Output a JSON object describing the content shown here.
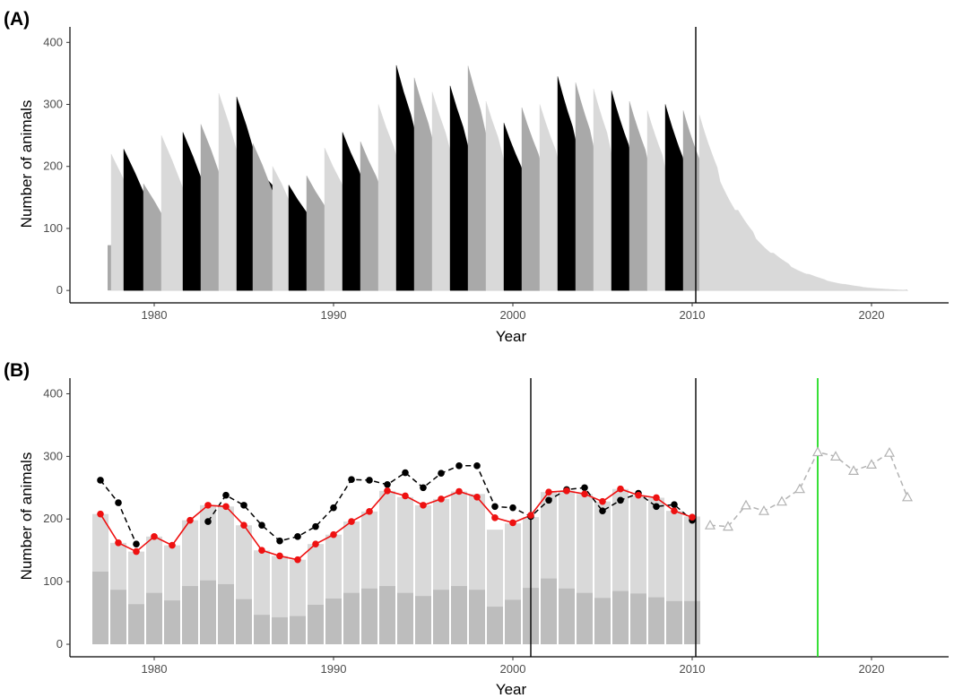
{
  "chart_data": [
    {
      "panel": "(A)",
      "type": "area",
      "xlabel": "Year",
      "ylabel": "Number of animals",
      "xlim": [
        1975.3,
        2024.3
      ],
      "ylim": [
        -20,
        425
      ],
      "xticks": [
        1980,
        1990,
        2000,
        2010,
        2020
      ],
      "yticks": [
        0,
        100,
        200,
        300,
        400
      ],
      "grid": false,
      "colors": {
        "light": "#d9d9d9",
        "mid": "#a9a9a9",
        "dark": "#000000"
      },
      "vline_year": 2010.2,
      "initial_block": {
        "x_start": 1977.4,
        "x_end": 1978.0,
        "value": 73
      },
      "cohorts": [
        {
          "year": 1977.6,
          "peak": 220
        },
        {
          "year": 1978.3,
          "peak": 228
        },
        {
          "year": 1979.4,
          "peak": 172
        },
        {
          "year": 1980.4,
          "peak": 250
        },
        {
          "year": 1981.6,
          "peak": 255
        },
        {
          "year": 1982.6,
          "peak": 268
        },
        {
          "year": 1983.6,
          "peak": 318
        },
        {
          "year": 1984.6,
          "peak": 312
        },
        {
          "year": 1985.5,
          "peak": 237
        },
        {
          "year": 1986.6,
          "peak": 200
        },
        {
          "year": 1987.5,
          "peak": 170
        },
        {
          "year": 1988.5,
          "peak": 185
        },
        {
          "year": 1989.5,
          "peak": 230
        },
        {
          "year": 1990.5,
          "peak": 255
        },
        {
          "year": 1991.5,
          "peak": 240
        },
        {
          "year": 1992.5,
          "peak": 300
        },
        {
          "year": 1993.5,
          "peak": 363
        },
        {
          "year": 1994.5,
          "peak": 343
        },
        {
          "year": 1995.5,
          "peak": 320
        },
        {
          "year": 1996.5,
          "peak": 330
        },
        {
          "year": 1997.5,
          "peak": 362
        },
        {
          "year": 1998.5,
          "peak": 305
        },
        {
          "year": 1999.5,
          "peak": 270
        },
        {
          "year": 2000.5,
          "peak": 295
        },
        {
          "year": 2001.5,
          "peak": 300
        },
        {
          "year": 2002.5,
          "peak": 345
        },
        {
          "year": 2003.5,
          "peak": 335
        },
        {
          "year": 2004.5,
          "peak": 325
        },
        {
          "year": 2005.5,
          "peak": 322
        },
        {
          "year": 2006.5,
          "peak": 305
        },
        {
          "year": 2007.5,
          "peak": 290
        },
        {
          "year": 2008.5,
          "peak": 300
        },
        {
          "year": 2009.5,
          "peak": 290
        },
        {
          "year": 2010.4,
          "peak": 283
        }
      ]
    },
    {
      "panel": "(B)",
      "type": "bar",
      "xlabel": "Year",
      "ylabel": "Number of animals",
      "xlim": [
        1975.3,
        2024.3
      ],
      "ylim": [
        -20,
        425
      ],
      "xticks": [
        1980,
        1990,
        2000,
        2010,
        2020
      ],
      "yticks": [
        0,
        100,
        200,
        300,
        400
      ],
      "grid": false,
      "colors": {
        "bar_total": "#d9d9d9",
        "bar_lower": "#bdbdbd",
        "observed": "#000000",
        "modeled": "#ee1111",
        "forecast": "#b3b3b3",
        "green_line": "#22dd22",
        "vline": "#000000"
      },
      "vlines": [
        2001,
        2010.2
      ],
      "green_vline": 2017,
      "bar_years": [
        1977,
        1978,
        1979,
        1980,
        1981,
        1982,
        1983,
        1984,
        1985,
        1986,
        1987,
        1988,
        1989,
        1990,
        1991,
        1992,
        1993,
        1994,
        1995,
        1996,
        1997,
        1998,
        1999,
        2000,
        2001,
        2002,
        2003,
        2004,
        2005,
        2006,
        2007,
        2008,
        2009,
        2010
      ],
      "bar_total": [
        208,
        162,
        148,
        172,
        158,
        198,
        222,
        220,
        190,
        150,
        141,
        135,
        160,
        175,
        196,
        212,
        245,
        235,
        222,
        232,
        244,
        240,
        183,
        193,
        203,
        243,
        245,
        240,
        228,
        248,
        238,
        234,
        213,
        204
      ],
      "bar_lower": [
        116,
        87,
        64,
        82,
        70,
        93,
        102,
        96,
        72,
        47,
        43,
        45,
        63,
        73,
        82,
        89,
        93,
        82,
        77,
        87,
        93,
        87,
        60,
        71,
        90,
        105,
        89,
        82,
        74,
        85,
        81,
        75,
        69,
        69
      ],
      "observed": {
        "x": [
          1977,
          1978,
          1979,
          1983,
          1984,
          1985,
          1986,
          1987,
          1988,
          1989,
          1990,
          1991,
          1992,
          1993,
          1994,
          1995,
          1996,
          1997,
          1998,
          1999,
          2000,
          2001,
          2002,
          2003,
          2004,
          2005,
          2006,
          2007,
          2008,
          2009,
          2010
        ],
        "y": [
          262,
          226,
          160,
          196,
          238,
          222,
          190,
          165,
          172,
          188,
          218,
          263,
          262,
          255,
          274,
          250,
          273,
          285,
          285,
          220,
          218,
          204,
          230,
          247,
          250,
          213,
          230,
          241,
          220,
          223,
          198
        ]
      },
      "modeled": {
        "x": [
          1977,
          1978,
          1979,
          1980,
          1981,
          1982,
          1983,
          1984,
          1985,
          1986,
          1987,
          1988,
          1989,
          1990,
          1991,
          1992,
          1993,
          1994,
          1995,
          1996,
          1997,
          1998,
          1999,
          2000,
          2001,
          2002,
          2003,
          2004,
          2005,
          2006,
          2007,
          2008,
          2009,
          2010
        ],
        "y": [
          208,
          162,
          148,
          172,
          158,
          198,
          222,
          220,
          190,
          150,
          141,
          135,
          160,
          175,
          196,
          212,
          245,
          237,
          222,
          232,
          244,
          235,
          202,
          194,
          206,
          243,
          245,
          240,
          228,
          248,
          238,
          234,
          213,
          203
        ]
      },
      "forecast": {
        "x": [
          2011,
          2012,
          2013,
          2014,
          2015,
          2016,
          2017,
          2018,
          2019,
          2020,
          2021,
          2022
        ],
        "y": [
          190,
          188,
          222,
          213,
          228,
          248,
          307,
          300,
          277,
          287,
          306,
          235
        ]
      }
    }
  ]
}
